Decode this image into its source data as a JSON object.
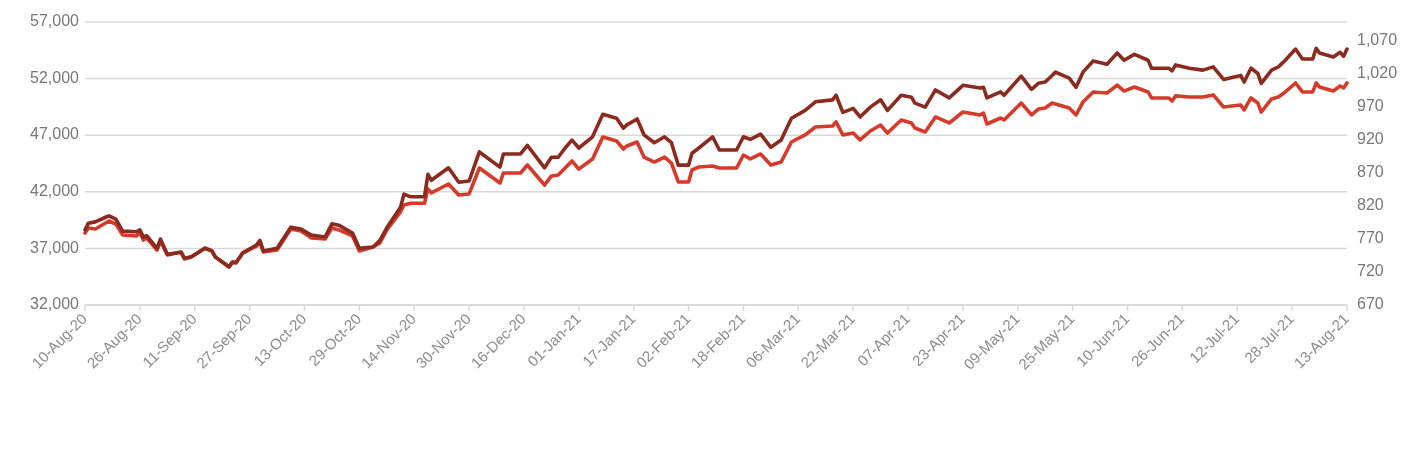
{
  "chart_data": {
    "type": "line",
    "x": [
      "2020-08-10",
      "2020-08-11",
      "2020-08-13",
      "2020-08-16",
      "2020-08-17",
      "2020-08-19",
      "2020-08-21",
      "2020-08-25",
      "2020-08-26",
      "2020-08-27",
      "2020-08-28",
      "2020-08-31",
      "2020-09-01",
      "2020-09-03",
      "2020-09-07",
      "2020-09-08",
      "2020-09-10",
      "2020-09-14",
      "2020-09-16",
      "2020-09-17",
      "2020-09-21",
      "2020-09-22",
      "2020-09-23",
      "2020-09-25",
      "2020-09-29",
      "2020-09-30",
      "2020-10-01",
      "2020-10-05",
      "2020-10-09",
      "2020-10-12",
      "2020-10-15",
      "2020-10-19",
      "2020-10-21",
      "2020-10-23",
      "2020-10-27",
      "2020-10-29",
      "2020-11-02",
      "2020-11-04",
      "2020-11-06",
      "2020-11-10",
      "2020-11-11",
      "2020-11-13",
      "2020-11-17",
      "2020-11-18",
      "2020-11-19",
      "2020-11-24",
      "2020-11-27",
      "2020-11-30",
      "2020-12-03",
      "2020-12-09",
      "2020-12-10",
      "2020-12-15",
      "2020-12-17",
      "2020-12-22",
      "2020-12-24",
      "2020-12-26",
      "2020-12-28",
      "2020-12-30",
      "2021-01-01",
      "2021-01-05",
      "2021-01-08",
      "2021-01-12",
      "2021-01-14",
      "2021-01-15",
      "2021-01-18",
      "2021-01-20",
      "2021-01-23",
      "2021-01-26",
      "2021-01-28",
      "2021-01-30",
      "2021-02-02",
      "2021-02-03",
      "2021-02-05",
      "2021-02-09",
      "2021-02-11",
      "2021-02-16",
      "2021-02-18",
      "2021-02-20",
      "2021-02-23",
      "2021-02-26",
      "2021-03-01",
      "2021-03-04",
      "2021-03-08",
      "2021-03-11",
      "2021-03-16",
      "2021-03-17",
      "2021-03-19",
      "2021-03-22",
      "2021-03-24",
      "2021-03-27",
      "2021-03-30",
      "2021-04-01",
      "2021-04-05",
      "2021-04-08",
      "2021-04-09",
      "2021-04-12",
      "2021-04-15",
      "2021-04-19",
      "2021-04-23",
      "2021-04-28",
      "2021-04-29",
      "2021-04-30",
      "2021-05-04",
      "2021-05-05",
      "2021-05-10",
      "2021-05-13",
      "2021-05-15",
      "2021-05-17",
      "2021-05-19",
      "2021-05-20",
      "2021-05-24",
      "2021-05-26",
      "2021-05-28",
      "2021-05-31",
      "2021-06-04",
      "2021-06-07",
      "2021-06-09",
      "2021-06-12",
      "2021-06-16",
      "2021-06-17",
      "2021-06-22",
      "2021-06-23",
      "2021-06-24",
      "2021-06-28",
      "2021-07-02",
      "2021-07-05",
      "2021-07-08",
      "2021-07-13",
      "2021-07-14",
      "2021-07-16",
      "2021-07-18",
      "2021-07-19",
      "2021-07-22",
      "2021-07-24",
      "2021-07-26",
      "2021-07-29",
      "2021-07-31",
      "2021-08-03",
      "2021-08-04",
      "2021-08-05",
      "2021-08-09",
      "2021-08-11",
      "2021-08-12",
      "2021-08-13"
    ],
    "series": [
      {
        "color": "#d63a2a",
        "values": [
          38360,
          38800,
          38710,
          39240,
          39420,
          39150,
          38180,
          38100,
          38450,
          37740,
          37920,
          36860,
          37650,
          36420,
          36680,
          36060,
          36240,
          37030,
          36770,
          36240,
          35360,
          35800,
          35710,
          36590,
          37210,
          37570,
          36680,
          36860,
          38710,
          38540,
          37920,
          37830,
          38800,
          38630,
          38100,
          36770,
          37120,
          37480,
          38630,
          40220,
          40830,
          40990,
          40990,
          42250,
          41900,
          42690,
          41720,
          41810,
          44100,
          42780,
          43660,
          43660,
          44370,
          42600,
          43400,
          43480,
          44100,
          44720,
          44010,
          44900,
          46840,
          46490,
          45780,
          46050,
          46400,
          45070,
          44630,
          45070,
          44540,
          42870,
          42870,
          43930,
          44190,
          44280,
          44100,
          44100,
          45250,
          44900,
          45340,
          44370,
          44630,
          46400,
          47020,
          47720,
          47810,
          48170,
          47020,
          47190,
          46580,
          47370,
          47900,
          47190,
          48340,
          48080,
          47640,
          47280,
          48610,
          48080,
          49050,
          48790,
          48960,
          47990,
          48520,
          48350,
          49840,
          48790,
          49310,
          49400,
          49840,
          49750,
          49400,
          48790,
          49930,
          50820,
          50730,
          51430,
          50900,
          51260,
          50820,
          50290,
          50290,
          50020,
          50470,
          50380,
          50380,
          50560,
          49490,
          49670,
          49230,
          50290,
          49840,
          49050,
          50200,
          50380,
          50820,
          51610,
          50820,
          50820,
          51610,
          51260,
          50900,
          51350,
          51170,
          51610
        ]
      },
      {
        "color": "#8b2a1e",
        "axis": "y2",
        "values": [
          784,
          794,
          796,
          803,
          805,
          800,
          782,
          781,
          784,
          773,
          775,
          756,
          770,
          747,
          750,
          741,
          743,
          756,
          752,
          743,
          728,
          735,
          734,
          749,
          761,
          768,
          752,
          756,
          788,
          785,
          776,
          773,
          793,
          791,
          779,
          756,
          758,
          768,
          787,
          818,
          838,
          834,
          834,
          868,
          859,
          878,
          856,
          858,
          902,
          879,
          899,
          899,
          912,
          878,
          894,
          894,
          908,
          920,
          908,
          925,
          959,
          953,
          938,
          943,
          952,
          928,
          916,
          925,
          916,
          882,
          882,
          900,
          908,
          925,
          905,
          905,
          925,
          921,
          929,
          909,
          920,
          953,
          965,
          978,
          981,
          988,
          962,
          968,
          955,
          970,
          981,
          965,
          988,
          985,
          976,
          970,
          996,
          984,
          1003,
          999,
          1000,
          984,
          993,
          988,
          1017,
          997,
          1006,
          1008,
          1018,
          1023,
          1014,
          1000,
          1023,
          1040,
          1035,
          1052,
          1041,
          1050,
          1041,
          1029,
          1029,
          1025,
          1034,
          1029,
          1026,
          1031,
          1012,
          1018,
          1008,
          1029,
          1021,
          1006,
          1026,
          1031,
          1041,
          1058,
          1043,
          1043,
          1059,
          1052,
          1046,
          1053,
          1047,
          1058
        ]
      }
    ],
    "xlim": [
      "2020-08-10",
      "2021-08-13"
    ],
    "xticks": [
      {
        "value": "2020-08-10",
        "label": "10-Aug-20"
      },
      {
        "value": "2020-08-26",
        "label": "26-Aug-20"
      },
      {
        "value": "2020-09-11",
        "label": "11-Sep-20"
      },
      {
        "value": "2020-09-27",
        "label": "27-Sep-20"
      },
      {
        "value": "2020-10-13",
        "label": "13-Oct-20"
      },
      {
        "value": "2020-10-29",
        "label": "29-Oct-20"
      },
      {
        "value": "2020-11-14",
        "label": "14-Nov-20"
      },
      {
        "value": "2020-11-30",
        "label": "30-Nov-20"
      },
      {
        "value": "2020-12-16",
        "label": "16-Dec-20"
      },
      {
        "value": "2021-01-01",
        "label": "01-Jan-21"
      },
      {
        "value": "2021-01-17",
        "label": "17-Jan-21"
      },
      {
        "value": "2021-02-02",
        "label": "02-Feb-21"
      },
      {
        "value": "2021-02-18",
        "label": "18-Feb-21"
      },
      {
        "value": "2021-03-06",
        "label": "06-Mar-21"
      },
      {
        "value": "2021-03-22",
        "label": "22-Mar-21"
      },
      {
        "value": "2021-04-07",
        "label": "07-Apr-21"
      },
      {
        "value": "2021-04-23",
        "label": "23-Apr-21"
      },
      {
        "value": "2021-05-09",
        "label": "09-May-21"
      },
      {
        "value": "2021-05-25",
        "label": "25-May-21"
      },
      {
        "value": "2021-06-10",
        "label": "10-Jun-21"
      },
      {
        "value": "2021-06-26",
        "label": "26-Jun-21"
      },
      {
        "value": "2021-07-12",
        "label": "12-Jul-21"
      },
      {
        "value": "2021-07-28",
        "label": "28-Jul-21"
      },
      {
        "value": "2021-08-13",
        "label": "13-Aug-21"
      }
    ],
    "ylim": [
      32000,
      57000
    ],
    "yticks": [
      {
        "value": 32000,
        "label": "32,000"
      },
      {
        "value": 37000,
        "label": "37,000"
      },
      {
        "value": 42000,
        "label": "42,000"
      },
      {
        "value": 47000,
        "label": "47,000"
      },
      {
        "value": 52000,
        "label": "52,000"
      },
      {
        "value": 57000,
        "label": "57,000"
      }
    ],
    "y2lim": [
      670,
      1099
    ],
    "y2ticks": [
      670,
      720,
      770,
      820,
      870,
      920,
      970,
      {
        "value": 1020,
        "label": "1,020"
      },
      {
        "value": 1070,
        "label": "1,070"
      }
    ],
    "grid": "y"
  }
}
